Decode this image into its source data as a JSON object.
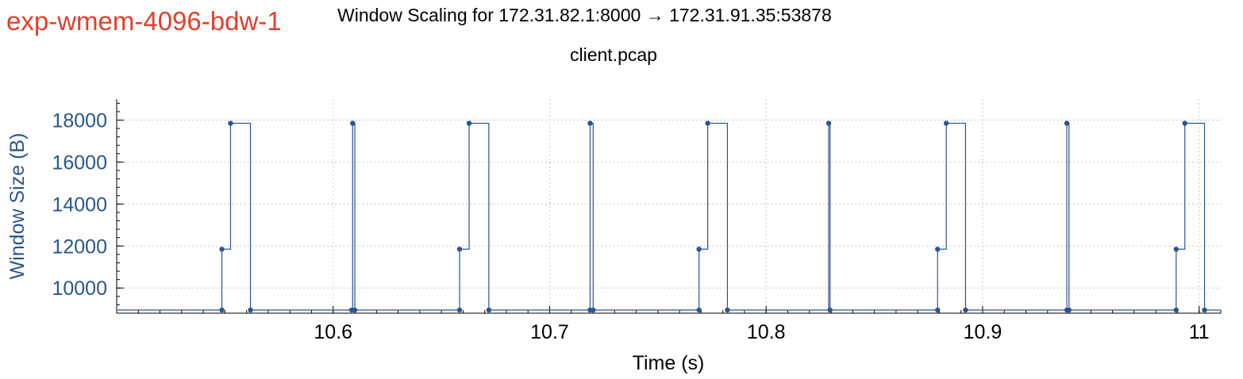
{
  "experiment_label": "exp-wmem-4096-bdw-1",
  "colors": {
    "experiment_label": "#e0402b",
    "series": "#2a5592",
    "ylabel": "#2a5592",
    "grid": "#c8c8c8",
    "axis": "#000000"
  },
  "chart_data": {
    "type": "line",
    "title": "Window Scaling for 172.31.82.1:8000 → 172.31.91.35:53878",
    "subtitle": "client.pcap",
    "xlabel": "Time (s)",
    "ylabel": "Window Size (B)",
    "xlim": [
      10.5,
      11.01
    ],
    "ylim": [
      8800,
      19000
    ],
    "grid": true,
    "line_style": "step-post",
    "x_ticks": [
      10.6,
      10.7,
      10.8,
      10.9,
      11.0
    ],
    "x_tick_labels": [
      "10.6",
      "10.7",
      "10.8",
      "10.9",
      "11"
    ],
    "y_ticks": [
      10000,
      12000,
      14000,
      16000,
      18000
    ],
    "y_tick_labels": [
      "10000",
      "12000",
      "14000",
      "16000",
      "18000"
    ],
    "series": [
      {
        "x": [
          10.5,
          10.5486,
          10.5486,
          10.5526,
          10.5618,
          10.6085,
          10.609,
          10.61,
          10.6584,
          10.6584,
          10.6628,
          10.6719,
          10.7187,
          10.7187,
          10.7201,
          10.769,
          10.769,
          10.773,
          10.7821,
          10.8289,
          10.8295,
          10.8792,
          10.8792,
          10.8832,
          10.8921,
          10.9389,
          10.9389,
          10.9399,
          10.9894,
          10.9894,
          10.9934,
          11.0025,
          11.01
        ],
        "y": [
          8950,
          8950,
          11850,
          17850,
          8950,
          8950,
          17850,
          8950,
          8950,
          11850,
          17850,
          8950,
          8950,
          17850,
          8950,
          8950,
          11850,
          17850,
          8950,
          17850,
          8950,
          8950,
          11850,
          17850,
          8950,
          8950,
          17850,
          8950,
          8950,
          11850,
          17850,
          8950,
          8950
        ]
      }
    ]
  }
}
